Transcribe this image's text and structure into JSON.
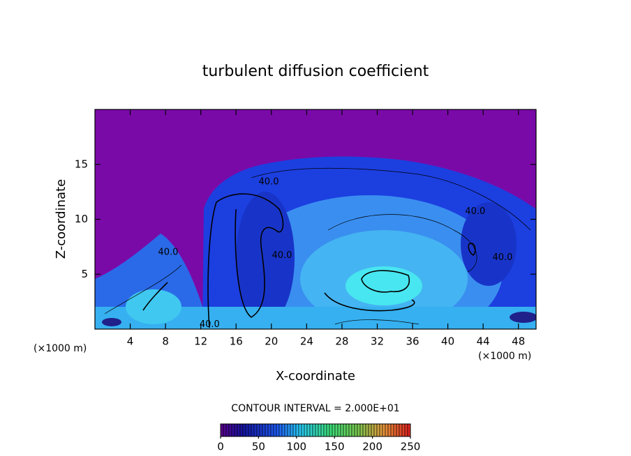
{
  "chart_data": {
    "type": "contour",
    "title": "turbulent diffusion coefficient",
    "x_label": "X-coordinate",
    "y_label": "Z-coordinate",
    "x_unit_label_left": "(×1000 m)",
    "x_unit_label_right": "(×1000 m)",
    "contour_interval_label": "CONTOUR INTERVAL = 2.000E+01",
    "xlim": [
      0,
      50
    ],
    "ylim": [
      0,
      20
    ],
    "xticks": [
      4,
      8,
      12,
      16,
      20,
      24,
      28,
      32,
      36,
      40,
      44,
      48
    ],
    "yticks": [
      5,
      10,
      15
    ],
    "clim": [
      0,
      250
    ],
    "cticks": [
      0,
      50,
      100,
      150,
      200,
      250
    ],
    "contour_labels": [
      {
        "value": 40,
        "label": "40.0",
        "x": 19.7,
        "y": 13.4
      },
      {
        "value": 40,
        "label": "40.0",
        "x": 21.2,
        "y": 6.7
      },
      {
        "value": 40,
        "label": "40.0",
        "x": 43.1,
        "y": 10.7
      },
      {
        "value": 40,
        "label": "40.0",
        "x": 46.2,
        "y": 6.5
      },
      {
        "value": 40,
        "label": "40.0",
        "x": 8.3,
        "y": 7.0
      },
      {
        "value": 40,
        "label": "40.0",
        "x": 13.0,
        "y": 0.4
      }
    ]
  }
}
